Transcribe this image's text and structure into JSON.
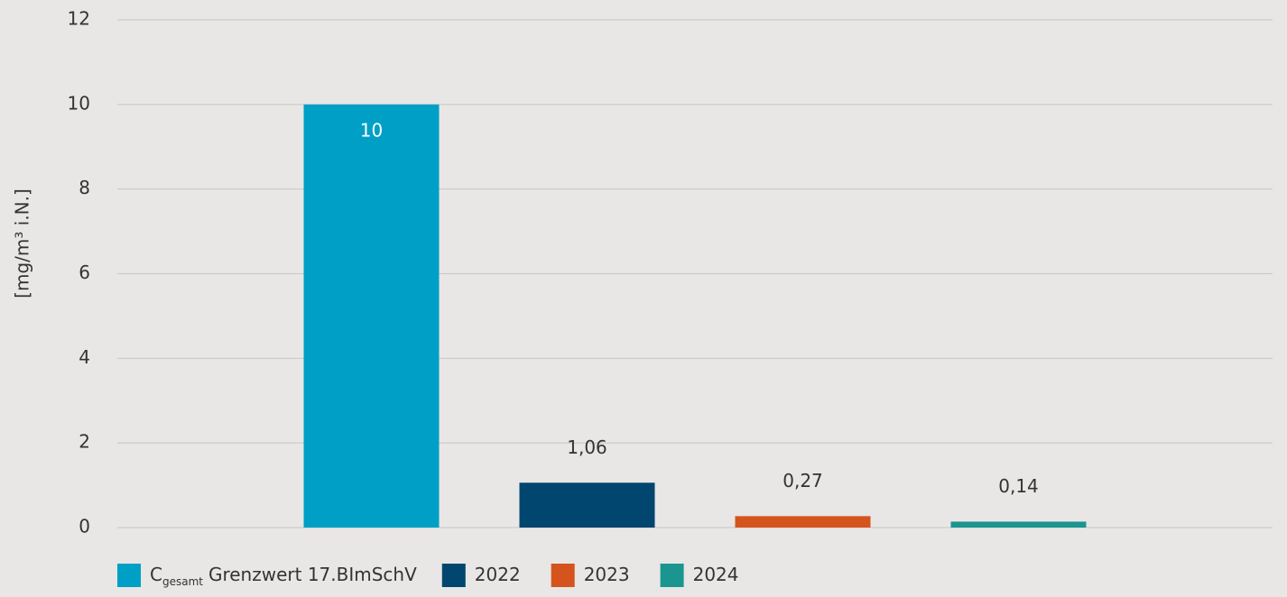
{
  "chart_data": {
    "type": "bar",
    "y_label": "[mg/m³ i.N.]",
    "categories": [
      null
    ],
    "series": [
      {
        "name": "C",
        "name_sub": "gesamt",
        "name_suffix": "Grenzwert 17.BImSchV",
        "color": "#009fc6",
        "values": [
          10
        ],
        "value_labels": [
          "10"
        ]
      },
      {
        "name": "2022",
        "color": "#00466e",
        "values": [
          1.06
        ],
        "value_labels": [
          "1,06"
        ]
      },
      {
        "name": "2023",
        "color": "#d5541e",
        "values": [
          0.27
        ],
        "value_labels": [
          "0,27"
        ]
      },
      {
        "name": "2024",
        "color": "#1a9590",
        "values": [
          0.14
        ],
        "value_labels": [
          "0,14"
        ]
      }
    ],
    "ylim": [
      0,
      12
    ],
    "yticks": [
      0,
      2,
      4,
      6,
      8,
      10,
      12
    ],
    "grid": true
  }
}
